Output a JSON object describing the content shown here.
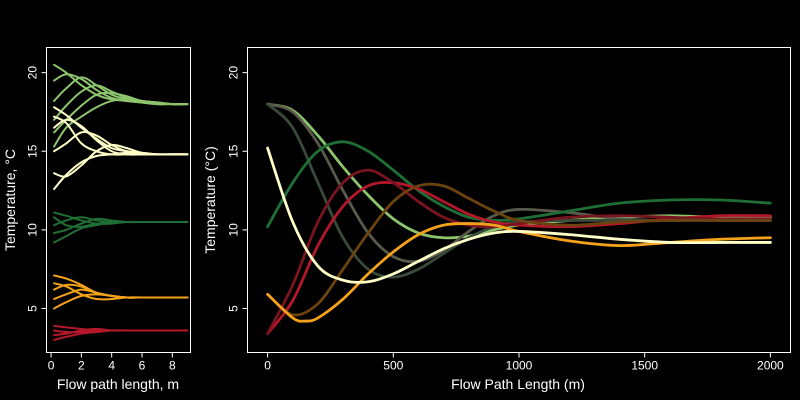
{
  "chart_data": [
    {
      "type": "line",
      "panel": "left",
      "xlabel": "Flow path length, m",
      "ylabel": "Temperature, °C",
      "xlim": [
        -0.3,
        9.2
      ],
      "ylim": [
        2.2,
        21.6
      ],
      "xticks": [
        "0",
        "2",
        "4",
        "6",
        "8"
      ],
      "yticks": [
        "5",
        "10",
        "15",
        "20"
      ],
      "grid": false,
      "series": [
        {
          "color": "#8dc46e",
          "x": [
            0.2,
            1,
            2,
            3,
            4,
            5,
            6,
            7,
            8,
            9
          ],
          "y": [
            20.5,
            20.0,
            19.2,
            18.6,
            18.3,
            18.2,
            18.1,
            18.1,
            18.0,
            18.0
          ]
        },
        {
          "color": "#8dc46e",
          "x": [
            0.2,
            1,
            2,
            3,
            4,
            5,
            6,
            7,
            8,
            9
          ],
          "y": [
            19.5,
            19.9,
            19.6,
            18.9,
            18.4,
            18.2,
            18.1,
            18.0,
            18.0,
            18.0
          ]
        },
        {
          "color": "#8dc46e",
          "x": [
            0.2,
            1,
            2,
            3,
            4,
            5,
            6,
            7,
            8,
            9
          ],
          "y": [
            18.2,
            19.0,
            19.7,
            19.2,
            18.6,
            18.3,
            18.1,
            18.0,
            18.0,
            18.0
          ]
        },
        {
          "color": "#8dc46e",
          "x": [
            0.2,
            1,
            2,
            3,
            4,
            5,
            6,
            7,
            8,
            9
          ],
          "y": [
            17.0,
            17.9,
            18.8,
            19.2,
            18.8,
            18.4,
            18.2,
            18.1,
            18.0,
            18.0
          ]
        },
        {
          "color": "#8dc46e",
          "x": [
            0.2,
            1,
            2,
            3,
            4,
            5,
            6,
            7,
            8,
            9
          ],
          "y": [
            16.2,
            17.0,
            17.9,
            18.6,
            18.7,
            18.5,
            18.2,
            18.1,
            18.0,
            18.0
          ]
        },
        {
          "color": "#8dc46e",
          "x": [
            0.2,
            1,
            2,
            3,
            4,
            5,
            6,
            7,
            8,
            9
          ],
          "y": [
            15.3,
            16.5,
            17.2,
            17.8,
            18.2,
            18.3,
            18.2,
            18.1,
            18.0,
            18.0
          ]
        },
        {
          "color": "#ffffc8",
          "x": [
            0.2,
            1,
            2,
            3,
            4,
            5,
            6,
            7,
            8,
            9
          ],
          "y": [
            17.8,
            17.3,
            16.5,
            15.8,
            15.2,
            15.0,
            14.9,
            14.8,
            14.8,
            14.8
          ]
        },
        {
          "color": "#ffffc8",
          "x": [
            0.2,
            1,
            2,
            3,
            4,
            5,
            6,
            7,
            8,
            9
          ],
          "y": [
            17.2,
            16.8,
            15.5,
            15.0,
            14.8,
            14.8,
            14.8,
            14.8,
            14.8,
            14.8
          ]
        },
        {
          "color": "#ffffc8",
          "x": [
            0.2,
            1,
            2,
            3,
            4,
            5,
            6,
            7,
            8,
            9
          ],
          "y": [
            16.5,
            17.0,
            16.6,
            15.7,
            15.0,
            14.8,
            14.8,
            14.8,
            14.8,
            14.8
          ]
        },
        {
          "color": "#ffffc8",
          "x": [
            0.2,
            1,
            2,
            3,
            4,
            5,
            6,
            7,
            8,
            9
          ],
          "y": [
            15.0,
            15.5,
            16.2,
            16.0,
            15.4,
            15.0,
            14.9,
            14.8,
            14.8,
            14.8
          ]
        },
        {
          "color": "#ffffc8",
          "x": [
            0.2,
            1,
            2,
            3,
            4,
            5,
            6,
            7,
            8,
            9
          ],
          "y": [
            13.6,
            13.4,
            14.1,
            15.0,
            15.4,
            15.2,
            14.9,
            14.8,
            14.8,
            14.8
          ]
        },
        {
          "color": "#ffffc8",
          "x": [
            0.2,
            1,
            2,
            3,
            4,
            5,
            6,
            7,
            8,
            9
          ],
          "y": [
            12.6,
            13.5,
            14.3,
            14.7,
            14.8,
            14.9,
            14.8,
            14.8,
            14.8,
            14.8
          ]
        },
        {
          "color": "#1f6e35",
          "x": [
            0.2,
            1,
            2,
            3,
            4,
            5,
            6,
            7,
            8,
            9
          ],
          "y": [
            11.1,
            10.9,
            10.6,
            10.4,
            10.4,
            10.5,
            10.5,
            10.5,
            10.5,
            10.5
          ]
        },
        {
          "color": "#1f6e35",
          "x": [
            0.2,
            1,
            2,
            3,
            4,
            5,
            6,
            7,
            8,
            9
          ],
          "y": [
            10.8,
            10.3,
            10.2,
            10.4,
            10.5,
            10.5,
            10.5,
            10.5,
            10.5,
            10.5
          ]
        },
        {
          "color": "#1f6e35",
          "x": [
            0.2,
            1,
            2,
            3,
            4,
            5,
            6,
            7,
            8,
            9
          ],
          "y": [
            10.3,
            10.6,
            10.8,
            10.6,
            10.5,
            10.5,
            10.5,
            10.5,
            10.5,
            10.5
          ]
        },
        {
          "color": "#1f6e35",
          "x": [
            0.2,
            1,
            2,
            3,
            4,
            5,
            6,
            7,
            8,
            9
          ],
          "y": [
            9.8,
            10.0,
            10.4,
            10.7,
            10.6,
            10.5,
            10.5,
            10.5,
            10.5,
            10.5
          ]
        },
        {
          "color": "#1f6e35",
          "x": [
            0.2,
            1,
            2,
            3,
            4,
            5,
            6,
            7,
            8,
            9
          ],
          "y": [
            9.2,
            9.6,
            10.1,
            10.3,
            10.5,
            10.5,
            10.5,
            10.5,
            10.5,
            10.5
          ]
        },
        {
          "color": "#f5a21b",
          "x": [
            0.2,
            1,
            2,
            3,
            4,
            5,
            6,
            7,
            8,
            9
          ],
          "y": [
            7.1,
            6.9,
            6.5,
            6.0,
            5.8,
            5.7,
            5.7,
            5.7,
            5.7,
            5.7
          ]
        },
        {
          "color": "#f5a21b",
          "x": [
            0.2,
            1,
            2,
            3,
            4,
            5,
            6,
            7,
            8,
            9
          ],
          "y": [
            6.6,
            6.4,
            5.9,
            5.6,
            5.6,
            5.7,
            5.7,
            5.7,
            5.7,
            5.7
          ]
        },
        {
          "color": "#f5a21b",
          "x": [
            0.2,
            1,
            2,
            3,
            4,
            5,
            6,
            7,
            8,
            9
          ],
          "y": [
            6.2,
            6.5,
            6.4,
            6.0,
            5.8,
            5.7,
            5.7,
            5.7,
            5.7,
            5.7
          ]
        },
        {
          "color": "#f5a21b",
          "x": [
            0.2,
            1,
            2,
            3,
            4,
            5,
            6,
            7,
            8,
            9
          ],
          "y": [
            5.6,
            5.9,
            6.2,
            6.0,
            5.8,
            5.7,
            5.7,
            5.7,
            5.7,
            5.7
          ]
        },
        {
          "color": "#f5a21b",
          "x": [
            0.2,
            1,
            2,
            3,
            4,
            5,
            6,
            7,
            8,
            9
          ],
          "y": [
            5.0,
            5.4,
            5.8,
            5.9,
            5.8,
            5.7,
            5.7,
            5.7,
            5.7,
            5.7
          ]
        },
        {
          "color": "#b3172a",
          "x": [
            0.2,
            1,
            2,
            3,
            4,
            5,
            6,
            7,
            8,
            9
          ],
          "y": [
            3.9,
            3.8,
            3.7,
            3.6,
            3.6,
            3.6,
            3.6,
            3.6,
            3.6,
            3.6
          ]
        },
        {
          "color": "#b3172a",
          "x": [
            0.2,
            1,
            2,
            3,
            4,
            5,
            6,
            7,
            8,
            9
          ],
          "y": [
            3.6,
            3.5,
            3.5,
            3.6,
            3.6,
            3.6,
            3.6,
            3.6,
            3.6,
            3.6
          ]
        },
        {
          "color": "#b3172a",
          "x": [
            0.2,
            1,
            2,
            3,
            4,
            5,
            6,
            7,
            8,
            9
          ],
          "y": [
            3.3,
            3.4,
            3.6,
            3.7,
            3.6,
            3.6,
            3.6,
            3.6,
            3.6,
            3.6
          ]
        },
        {
          "color": "#b3172a",
          "x": [
            0.2,
            1,
            2,
            3,
            4,
            5,
            6,
            7,
            8,
            9
          ],
          "y": [
            3.0,
            3.2,
            3.4,
            3.5,
            3.6,
            3.6,
            3.6,
            3.6,
            3.6,
            3.6
          ]
        }
      ]
    },
    {
      "type": "line",
      "panel": "right",
      "xlabel": "Flow Path Length (m)",
      "ylabel": "Temperature (°C)",
      "xlim": [
        -80,
        2080
      ],
      "ylim": [
        2.2,
        21.6
      ],
      "xticks": [
        "0",
        "500",
        "1000",
        "1500",
        "2000"
      ],
      "yticks": [
        "5",
        "10",
        "15",
        "20"
      ],
      "grid": false,
      "series": [
        {
          "color": "#8dc46e",
          "x": [
            0,
            100,
            200,
            300,
            400,
            500,
            600,
            700,
            800,
            900,
            1000,
            1200,
            1400,
            1600,
            1800,
            2000
          ],
          "y": [
            18.0,
            17.6,
            16.0,
            14.0,
            12.2,
            10.7,
            9.8,
            9.5,
            9.6,
            10.0,
            10.3,
            10.6,
            10.8,
            10.9,
            10.8,
            10.8
          ]
        },
        {
          "color": "#5a5a4a",
          "x": [
            0,
            100,
            200,
            300,
            400,
            500,
            600,
            700,
            800,
            900,
            1000,
            1200,
            1400,
            1600,
            1800,
            2000
          ],
          "y": [
            18.0,
            17.5,
            15.5,
            12.5,
            9.8,
            8.3,
            8.0,
            8.7,
            9.9,
            10.9,
            11.3,
            11.1,
            10.7,
            10.6,
            10.7,
            10.7
          ]
        },
        {
          "color": "#3a4a3a",
          "x": [
            0,
            100,
            200,
            300,
            400,
            500,
            600,
            700,
            800,
            900,
            1000,
            1200,
            1400,
            1600,
            1800,
            2000
          ],
          "y": [
            18.0,
            16.5,
            13.0,
            9.5,
            7.5,
            7.0,
            7.5,
            8.5,
            9.5,
            10.2,
            10.5,
            10.6,
            10.6,
            10.6,
            10.6,
            10.6
          ]
        },
        {
          "color": "#1f6e35",
          "x": [
            0,
            100,
            200,
            300,
            400,
            500,
            600,
            700,
            800,
            900,
            1000,
            1200,
            1400,
            1600,
            1800,
            2000
          ],
          "y": [
            10.2,
            13.0,
            15.0,
            15.6,
            15.0,
            13.8,
            12.5,
            11.5,
            10.8,
            10.6,
            10.7,
            11.2,
            11.7,
            11.9,
            11.9,
            11.7
          ]
        },
        {
          "color": "#b3172a",
          "x": [
            0,
            100,
            200,
            300,
            400,
            500,
            600,
            700,
            800,
            900,
            1000,
            1200,
            1400,
            1600,
            1800,
            2000
          ],
          "y": [
            3.4,
            5.5,
            9.0,
            11.5,
            12.8,
            13.0,
            12.6,
            11.8,
            11.0,
            10.5,
            10.3,
            10.2,
            10.4,
            10.7,
            10.9,
            10.9
          ]
        },
        {
          "color": "#7a1520",
          "x": [
            0,
            100,
            200,
            300,
            400,
            500,
            600,
            700,
            800,
            900,
            1000,
            1200,
            1400,
            1600,
            1800,
            2000
          ],
          "y": [
            3.4,
            6.5,
            10.5,
            13.0,
            13.8,
            13.0,
            11.8,
            10.8,
            10.3,
            10.2,
            10.4,
            10.8,
            10.9,
            10.8,
            10.7,
            10.7
          ]
        },
        {
          "color": "#6b4210",
          "x": [
            0,
            100,
            200,
            300,
            400,
            500,
            600,
            700,
            800,
            900,
            1000,
            1200,
            1400,
            1600,
            1800,
            2000
          ],
          "y": [
            5.9,
            4.6,
            5.3,
            7.5,
            9.8,
            11.8,
            12.8,
            12.8,
            12.0,
            11.2,
            10.6,
            10.3,
            10.5,
            10.6,
            10.6,
            10.6
          ]
        },
        {
          "color": "#f5a21b",
          "x": [
            0,
            100,
            150,
            200,
            300,
            400,
            500,
            600,
            700,
            800,
            900,
            1000,
            1200,
            1400,
            1600,
            1800,
            2000
          ],
          "y": [
            5.9,
            4.4,
            4.2,
            4.4,
            5.6,
            7.2,
            8.6,
            9.7,
            10.3,
            10.4,
            10.3,
            9.9,
            9.3,
            9.0,
            9.2,
            9.4,
            9.5
          ]
        },
        {
          "color": "#ffffc8",
          "x": [
            0,
            100,
            200,
            300,
            400,
            500,
            600,
            700,
            800,
            900,
            1000,
            1200,
            1400,
            1600,
            1800,
            2000
          ],
          "y": [
            15.2,
            10.5,
            7.7,
            6.8,
            6.7,
            7.2,
            8.0,
            8.8,
            9.4,
            9.8,
            9.9,
            9.7,
            9.4,
            9.2,
            9.2,
            9.2
          ]
        }
      ]
    }
  ]
}
